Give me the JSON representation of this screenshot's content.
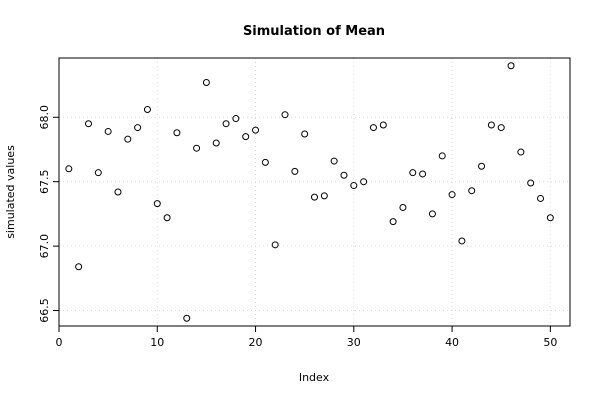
{
  "chart_data": {
    "type": "scatter",
    "title": "Simulation of Mean",
    "xlabel": "Index",
    "ylabel": "simulated values",
    "xlim": [
      0,
      52
    ],
    "ylim": [
      66.38,
      68.46
    ],
    "x_ticks": [
      0,
      10,
      20,
      30,
      40,
      50
    ],
    "x_tick_labels": [
      "0",
      "10",
      "20",
      "30",
      "40",
      "50"
    ],
    "y_ticks": [
      66.5,
      67.0,
      67.5,
      68.0
    ],
    "y_tick_labels": [
      "66.5",
      "67.0",
      "67.5",
      "68.0"
    ],
    "grid": true,
    "legend": "none",
    "series": [
      {
        "x": [
          1,
          2,
          3,
          4,
          5,
          6,
          7,
          8,
          9,
          10,
          11,
          12,
          13,
          14,
          15,
          16,
          17,
          18,
          19,
          20,
          21,
          22,
          23,
          24,
          25,
          26,
          27,
          28,
          29,
          30,
          31,
          32,
          33,
          34,
          35,
          36,
          37,
          38,
          39,
          40,
          41,
          42,
          43,
          44,
          45,
          46,
          47,
          48,
          49,
          50
        ],
        "y": [
          67.6,
          66.84,
          67.95,
          67.57,
          67.89,
          67.42,
          67.83,
          67.92,
          68.06,
          67.33,
          67.22,
          67.88,
          66.44,
          67.76,
          68.27,
          67.8,
          67.95,
          67.99,
          67.85,
          67.9,
          67.65,
          67.01,
          68.02,
          67.58,
          67.87,
          67.38,
          67.39,
          67.66,
          67.55,
          67.47,
          67.5,
          67.92,
          67.94,
          67.19,
          67.3,
          67.57,
          67.56,
          67.25,
          67.7,
          67.4,
          67.04,
          67.43,
          67.62,
          67.94,
          67.92,
          68.4,
          67.73,
          67.49,
          67.37,
          67.22
        ]
      }
    ]
  }
}
